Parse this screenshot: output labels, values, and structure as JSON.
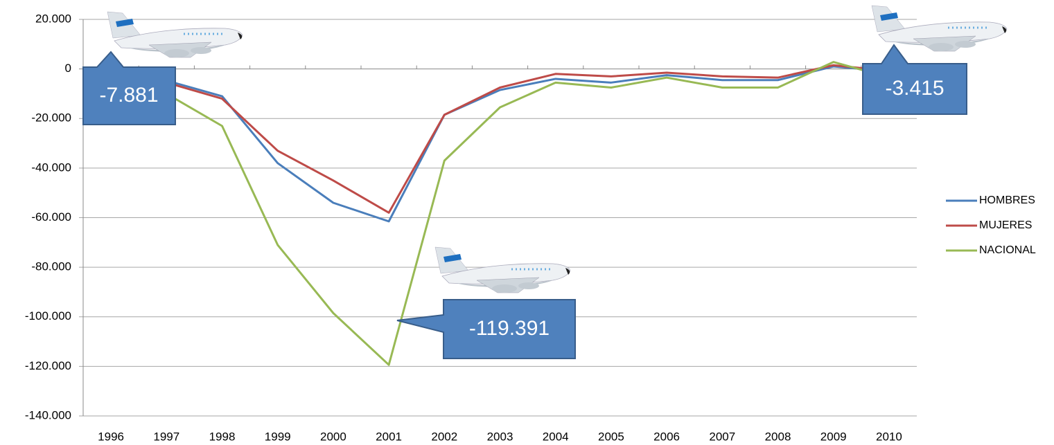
{
  "chart_data": {
    "type": "line",
    "categories": [
      "1996",
      "1997",
      "1998",
      "1999",
      "2000",
      "2001",
      "2002",
      "2003",
      "2004",
      "2005",
      "2006",
      "2007",
      "2008",
      "2009",
      "2010"
    ],
    "series": [
      {
        "name": "HOMBRES",
        "color": "#4a7ebb",
        "values": [
          -4000,
          -4700,
          -11000,
          -38000,
          -54000,
          -61500,
          -18500,
          -8500,
          -4000,
          -5500,
          -2500,
          -4500,
          -4500,
          1000,
          -1000
        ]
      },
      {
        "name": "MUJERES",
        "color": "#be4b48",
        "values": [
          -3500,
          -5500,
          -12000,
          -33000,
          -45000,
          -58000,
          -18500,
          -7500,
          -2000,
          -3000,
          -1500,
          -3000,
          -3500,
          1500,
          -800
        ]
      },
      {
        "name": "NACIONAL",
        "color": "#98b954",
        "values": [
          -7881,
          -10000,
          -23000,
          -71000,
          -98500,
          -119391,
          -37000,
          -15500,
          -5500,
          -7500,
          -3500,
          -7500,
          -7500,
          2800,
          -3415
        ],
        "value_labels": [
          "-7.881",
          null,
          null,
          null,
          null,
          "-119.391",
          null,
          null,
          null,
          null,
          null,
          null,
          null,
          null,
          "-3.415"
        ]
      }
    ],
    "ylim": [
      -140000,
      20000
    ],
    "yticks": [
      {
        "value": -140000,
        "label": "-140.000"
      },
      {
        "value": -120000,
        "label": "-120.000"
      },
      {
        "value": -100000,
        "label": "-100.000"
      },
      {
        "value": -80000,
        "label": "-80.000"
      },
      {
        "value": -60000,
        "label": "-60.000"
      },
      {
        "value": -40000,
        "label": "-40.000"
      },
      {
        "value": -20000,
        "label": "-20.000"
      },
      0,
      {
        "value": 20000,
        "label": "20.000"
      }
    ],
    "grid": true,
    "legend": "right"
  }
}
